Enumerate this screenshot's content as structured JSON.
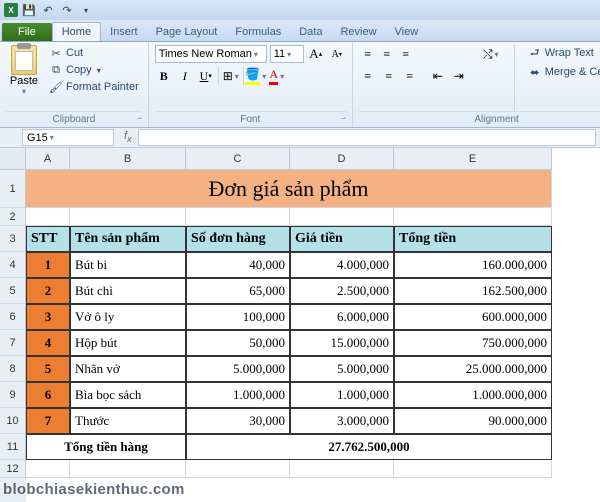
{
  "tabs": {
    "file": "File",
    "home": "Home",
    "insert": "Insert",
    "pagelayout": "Page Layout",
    "formulas": "Formulas",
    "data": "Data",
    "review": "Review",
    "view": "View"
  },
  "clipboard": {
    "paste": "Paste",
    "cut": "Cut",
    "copy": "Copy",
    "painter": "Format Painter",
    "label": "Clipboard"
  },
  "font": {
    "name": "Times New Roman",
    "size": "11",
    "label": "Font"
  },
  "align": {
    "wrap": "Wrap Text",
    "merge": "Merge & Center",
    "label": "Alignment"
  },
  "namebox": "G15",
  "cols": [
    "A",
    "B",
    "C",
    "D",
    "E"
  ],
  "title": "Đơn giá sản phẩm",
  "headers": {
    "stt": "STT",
    "name": "Tên sản phẩm",
    "qty": "Số đơn hàng",
    "price": "Giá tiền",
    "total": "Tổng tiền"
  },
  "rows": [
    {
      "n": "1",
      "name": "Bút bi",
      "qty": "40,000",
      "price": "4.000,000",
      "total": "160.000,000"
    },
    {
      "n": "2",
      "name": "Bút chì",
      "qty": "65,000",
      "price": "2.500,000",
      "total": "162.500,000"
    },
    {
      "n": "3",
      "name": "Vở ô ly",
      "qty": "100,000",
      "price": "6.000,000",
      "total": "600.000,000"
    },
    {
      "n": "4",
      "name": "Hộp bút",
      "qty": "50,000",
      "price": "15.000,000",
      "total": "750.000,000"
    },
    {
      "n": "5",
      "name": "Nhãn vở",
      "qty": "5.000,000",
      "price": "5.000,000",
      "total": "25.000.000,000"
    },
    {
      "n": "6",
      "name": "Bìa bọc sách",
      "qty": "1.000,000",
      "price": "1.000,000",
      "total": "1.000.000,000"
    },
    {
      "n": "7",
      "name": "Thước",
      "qty": "30,000",
      "price": "3.000,000",
      "total": "90.000,000"
    }
  ],
  "footer": {
    "label": "Tổng tiền hàng",
    "value": "27.762.500,000"
  },
  "rownums": [
    "1",
    "2",
    "3",
    "4",
    "5",
    "6",
    "7",
    "8",
    "9",
    "10",
    "11",
    "12"
  ],
  "watermark": "blobchiasekienthuc.com",
  "colors": {
    "title_bg": "#f4b183",
    "header_bg": "#b4e0e8",
    "stt_bg": "#ed7d31"
  }
}
